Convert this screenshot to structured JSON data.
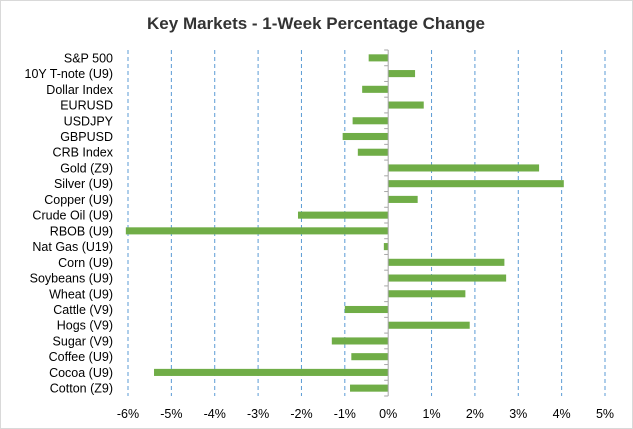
{
  "chart_data": {
    "type": "bar",
    "orientation": "horizontal",
    "title": "Key Markets - 1-Week Percentage Change",
    "xlabel": "",
    "ylabel": "",
    "xlim": [
      -6,
      5
    ],
    "x_ticks": [
      -6,
      -5,
      -4,
      -3,
      -2,
      -1,
      0,
      1,
      2,
      3,
      4,
      5
    ],
    "x_tick_labels": [
      "-6%",
      "-5%",
      "-4%",
      "-3%",
      "-2%",
      "-1%",
      "0%",
      "1%",
      "2%",
      "3%",
      "4%",
      "5%"
    ],
    "grid": "vertical dashed",
    "legend": "none",
    "bar_color": "#70ad47",
    "grid_color": "#5b9bd5",
    "categories": [
      "S&P 500",
      "10Y T-note (U9)",
      "Dollar Index",
      "EURUSD",
      "USDJPY",
      "GBPUSD",
      "CRB Index",
      "Gold (Z9)",
      "Silver (U9)",
      "Copper (U9)",
      "Crude Oil (U9)",
      "RBOB (U9)",
      "Nat Gas (U19)",
      "Corn (U9)",
      "Soybeans (U9)",
      "Wheat (U9)",
      "Cattle (V9)",
      "Hogs (V9)",
      "Sugar (V9)",
      "Coffee (U9)",
      "Cocoa (U9)",
      "Cotton (Z9)"
    ],
    "values": [
      -0.45,
      0.62,
      -0.6,
      0.82,
      -0.82,
      -1.05,
      -0.7,
      3.48,
      4.05,
      0.68,
      -2.08,
      -6.05,
      -0.1,
      2.68,
      2.72,
      1.78,
      -1.0,
      1.88,
      -1.3,
      -0.85,
      -5.4,
      -0.88
    ]
  }
}
